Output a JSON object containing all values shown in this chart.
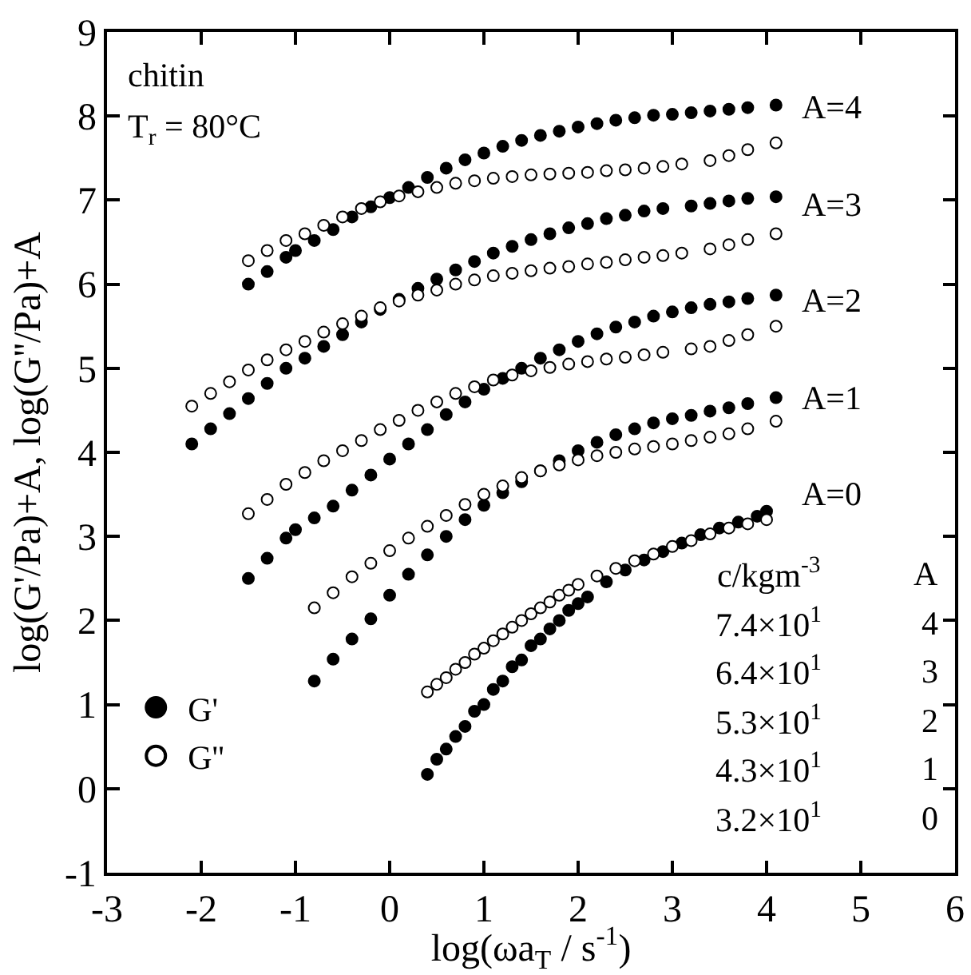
{
  "chart_data": {
    "type": "scatter",
    "xlabel": "log(ωa$_{T}$ / s$^{-1}$)",
    "ylabel": "log(G'/Pa)+A, log(G''/Pa)+A",
    "xlim": [
      -3,
      6
    ],
    "ylim": [
      -1,
      9
    ],
    "xticks": [
      -3,
      -2,
      -1,
      0,
      1,
      2,
      3,
      4,
      5,
      6
    ],
    "yticks": [
      -1,
      0,
      1,
      2,
      3,
      4,
      5,
      6,
      7,
      8,
      9
    ],
    "grid": false,
    "legend": "bottom left",
    "marker": "circle",
    "series": [
      {
        "name": "G'",
        "color": "#000000",
        "x": [
          -1.5,
          -1.3,
          -1.1,
          -1.0,
          -0.8,
          -0.6,
          -0.4,
          -0.2,
          0,
          0.2,
          0.4,
          0.6,
          0.8,
          1.0,
          1.2,
          1.4,
          1.6,
          1.8,
          2.0,
          2.2,
          2.4,
          2.6,
          2.8,
          3.0,
          3.2,
          3.4,
          3.6,
          3.8,
          4.1,
          -2.1,
          -1.9,
          -1.7,
          -1.5,
          -1.3,
          -1.1,
          -0.9,
          -0.7,
          -0.5,
          -0.3,
          -0.1,
          0.1,
          0.3,
          0.5,
          0.7,
          0.9,
          1.1,
          1.3,
          1.5,
          1.7,
          1.9,
          2.1,
          2.3,
          2.5,
          2.7,
          2.9,
          3.2,
          3.4,
          3.6,
          3.8,
          4.1,
          -1.5,
          -1.3,
          -1.1,
          -1.0,
          -0.8,
          -0.6,
          -0.4,
          -0.2,
          0,
          0.2,
          0.4,
          0.6,
          0.8,
          1.0,
          1.2,
          1.4,
          1.6,
          1.8,
          2.0,
          2.2,
          2.4,
          2.6,
          2.8,
          3.0,
          3.2,
          3.4,
          3.6,
          3.8,
          4.1,
          -0.8,
          -0.6,
          -0.4,
          -0.2,
          0,
          0.2,
          0.4,
          0.6,
          0.8,
          1.0,
          1.2,
          1.4,
          1.6,
          1.8,
          2.0,
          2.2,
          2.4,
          2.6,
          2.8,
          3.0,
          3.2,
          3.4,
          3.6,
          3.8,
          4.1,
          0.4,
          0.5,
          0.6,
          0.7,
          0.8,
          0.9,
          1.0,
          1.1,
          1.2,
          1.3,
          1.4,
          1.5,
          1.6,
          1.7,
          1.8,
          1.9,
          2.0,
          2.1,
          2.3,
          2.5,
          2.7,
          2.9,
          3.1,
          3.3,
          3.5,
          3.7,
          3.9,
          4.0
        ],
        "values": [
          6.0,
          6.15,
          6.32,
          6.4,
          6.52,
          6.65,
          6.8,
          6.92,
          7.03,
          7.15,
          7.27,
          7.38,
          7.48,
          7.56,
          7.64,
          7.71,
          7.77,
          7.82,
          7.87,
          7.91,
          7.95,
          7.98,
          8.01,
          8.02,
          8.04,
          8.06,
          8.08,
          8.1,
          8.13,
          4.1,
          4.28,
          4.46,
          4.64,
          4.82,
          5.0,
          5.12,
          5.26,
          5.4,
          5.55,
          5.7,
          5.82,
          5.95,
          6.06,
          6.17,
          6.27,
          6.37,
          6.45,
          6.53,
          6.6,
          6.67,
          6.72,
          6.78,
          6.82,
          6.87,
          6.9,
          6.93,
          6.96,
          6.99,
          7.02,
          7.04,
          2.5,
          2.74,
          2.98,
          3.08,
          3.22,
          3.36,
          3.55,
          3.73,
          3.92,
          4.1,
          4.27,
          4.45,
          4.6,
          4.75,
          4.88,
          5.0,
          5.12,
          5.22,
          5.32,
          5.41,
          5.49,
          5.55,
          5.62,
          5.67,
          5.72,
          5.76,
          5.79,
          5.83,
          5.87,
          1.28,
          1.54,
          1.78,
          2.02,
          2.3,
          2.55,
          2.78,
          3.0,
          3.2,
          3.37,
          3.52,
          3.65,
          3.78,
          3.9,
          4.02,
          4.12,
          4.21,
          4.28,
          4.35,
          4.4,
          4.44,
          4.49,
          4.53,
          4.58,
          4.65,
          0.17,
          0.35,
          0.47,
          0.62,
          0.74,
          0.92,
          1.0,
          1.18,
          1.28,
          1.45,
          1.53,
          1.7,
          1.78,
          1.9,
          2.0,
          2.12,
          2.2,
          2.28,
          2.46,
          2.6,
          2.72,
          2.82,
          2.92,
          3.02,
          3.1,
          3.17,
          3.24,
          3.3
        ]
      },
      {
        "name": "G''",
        "color": "#ffffff",
        "x": [
          -1.5,
          -1.3,
          -1.1,
          -0.9,
          -0.7,
          -0.5,
          -0.3,
          -0.1,
          0.1,
          0.3,
          0.5,
          0.7,
          0.9,
          1.1,
          1.3,
          1.5,
          1.7,
          1.9,
          2.1,
          2.3,
          2.5,
          2.7,
          2.9,
          3.1,
          3.4,
          3.6,
          3.8,
          4.1,
          -2.1,
          -1.9,
          -1.7,
          -1.5,
          -1.3,
          -1.1,
          -0.9,
          -0.7,
          -0.5,
          -0.3,
          -0.1,
          0.1,
          0.3,
          0.5,
          0.7,
          0.9,
          1.1,
          1.3,
          1.5,
          1.7,
          1.9,
          2.1,
          2.3,
          2.5,
          2.7,
          2.9,
          3.1,
          3.4,
          3.6,
          3.8,
          4.1,
          -1.5,
          -1.3,
          -1.1,
          -0.9,
          -0.7,
          -0.5,
          -0.3,
          -0.1,
          0.1,
          0.3,
          0.5,
          0.7,
          0.9,
          1.1,
          1.3,
          1.5,
          1.7,
          1.9,
          2.1,
          2.3,
          2.5,
          2.7,
          2.9,
          3.2,
          3.4,
          3.6,
          3.8,
          4.1,
          -0.8,
          -0.6,
          -0.4,
          -0.2,
          0,
          0.2,
          0.4,
          0.6,
          0.8,
          1.0,
          1.2,
          1.4,
          1.6,
          1.8,
          2.0,
          2.2,
          2.4,
          2.6,
          2.8,
          3.0,
          3.2,
          3.4,
          3.6,
          3.8,
          4.1,
          0.4,
          0.5,
          0.6,
          0.7,
          0.8,
          0.9,
          1.0,
          1.1,
          1.2,
          1.3,
          1.4,
          1.5,
          1.6,
          1.7,
          1.8,
          1.9,
          2.0,
          2.2,
          2.4,
          2.6,
          2.8,
          3.0,
          3.2,
          3.4,
          3.6,
          3.8,
          4.0
        ],
        "values": [
          6.28,
          6.4,
          6.52,
          6.6,
          6.7,
          6.8,
          6.9,
          6.98,
          7.05,
          7.1,
          7.15,
          7.2,
          7.23,
          7.26,
          7.28,
          7.3,
          7.31,
          7.32,
          7.33,
          7.35,
          7.36,
          7.38,
          7.4,
          7.43,
          7.47,
          7.53,
          7.6,
          7.68,
          4.55,
          4.7,
          4.84,
          4.98,
          5.1,
          5.22,
          5.32,
          5.43,
          5.53,
          5.62,
          5.72,
          5.8,
          5.87,
          5.93,
          6.0,
          6.05,
          6.1,
          6.13,
          6.16,
          6.19,
          6.21,
          6.24,
          6.26,
          6.29,
          6.32,
          6.34,
          6.37,
          6.42,
          6.47,
          6.53,
          6.6,
          3.27,
          3.44,
          3.62,
          3.76,
          3.9,
          4.02,
          4.14,
          4.27,
          4.38,
          4.5,
          4.6,
          4.7,
          4.78,
          4.86,
          4.92,
          4.97,
          5.01,
          5.05,
          5.08,
          5.11,
          5.13,
          5.16,
          5.19,
          5.23,
          5.26,
          5.33,
          5.4,
          5.5,
          2.15,
          2.33,
          2.52,
          2.68,
          2.83,
          2.98,
          3.12,
          3.25,
          3.38,
          3.5,
          3.6,
          3.7,
          3.78,
          3.85,
          3.91,
          3.96,
          4.0,
          4.04,
          4.07,
          4.1,
          4.14,
          4.18,
          4.22,
          4.28,
          4.37,
          1.15,
          1.24,
          1.32,
          1.42,
          1.5,
          1.6,
          1.67,
          1.76,
          1.84,
          1.92,
          2.0,
          2.08,
          2.15,
          2.22,
          2.3,
          2.36,
          2.43,
          2.53,
          2.62,
          2.71,
          2.79,
          2.88,
          2.95,
          3.03,
          3.1,
          3.15,
          3.2
        ]
      }
    ],
    "annotations": [
      "chitin",
      "T$_{r}$ = 80°C",
      "c/kgm$^{-3}$",
      "A",
      "7.4×10$^{1}$",
      "4",
      "6.4×10$^{1}$",
      "3",
      "5.3×10$^{1}$",
      "2",
      "4.3×10$^{1}$",
      "1",
      "3.2×10$^{1}$",
      "0",
      "A=4",
      "A=3",
      "A=2",
      "A=1",
      "A=0"
    ]
  }
}
